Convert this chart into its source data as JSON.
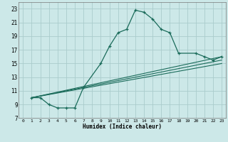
{
  "xlabel": "Humidex (Indice chaleur)",
  "bg_color": "#cce8e8",
  "grid_color": "#aacccc",
  "line_color": "#1a6b5a",
  "xlim": [
    -0.5,
    23.5
  ],
  "ylim": [
    7,
    24
  ],
  "xticks": [
    0,
    1,
    2,
    3,
    4,
    5,
    6,
    7,
    8,
    9,
    10,
    11,
    12,
    13,
    14,
    15,
    16,
    17,
    18,
    19,
    20,
    21,
    22,
    23
  ],
  "yticks": [
    7,
    9,
    11,
    13,
    15,
    17,
    19,
    21,
    23
  ],
  "curve1_x": [
    1,
    2,
    3,
    4,
    5,
    6,
    7,
    9,
    10,
    11,
    12,
    13,
    14,
    15,
    16,
    17,
    18,
    20,
    21,
    22,
    23
  ],
  "curve1_y": [
    10.0,
    10.0,
    9.0,
    8.5,
    8.5,
    8.5,
    11.5,
    15.0,
    17.5,
    19.5,
    20.0,
    22.8,
    22.5,
    21.5,
    20.0,
    19.5,
    16.5,
    16.5,
    16.0,
    15.5,
    16.0
  ],
  "line2_x": [
    1,
    23
  ],
  "line2_y": [
    10.0,
    16.0
  ],
  "line3_x": [
    1,
    23
  ],
  "line3_y": [
    10.0,
    15.5
  ],
  "line4_x": [
    1,
    23
  ],
  "line4_y": [
    10.0,
    15.0
  ]
}
